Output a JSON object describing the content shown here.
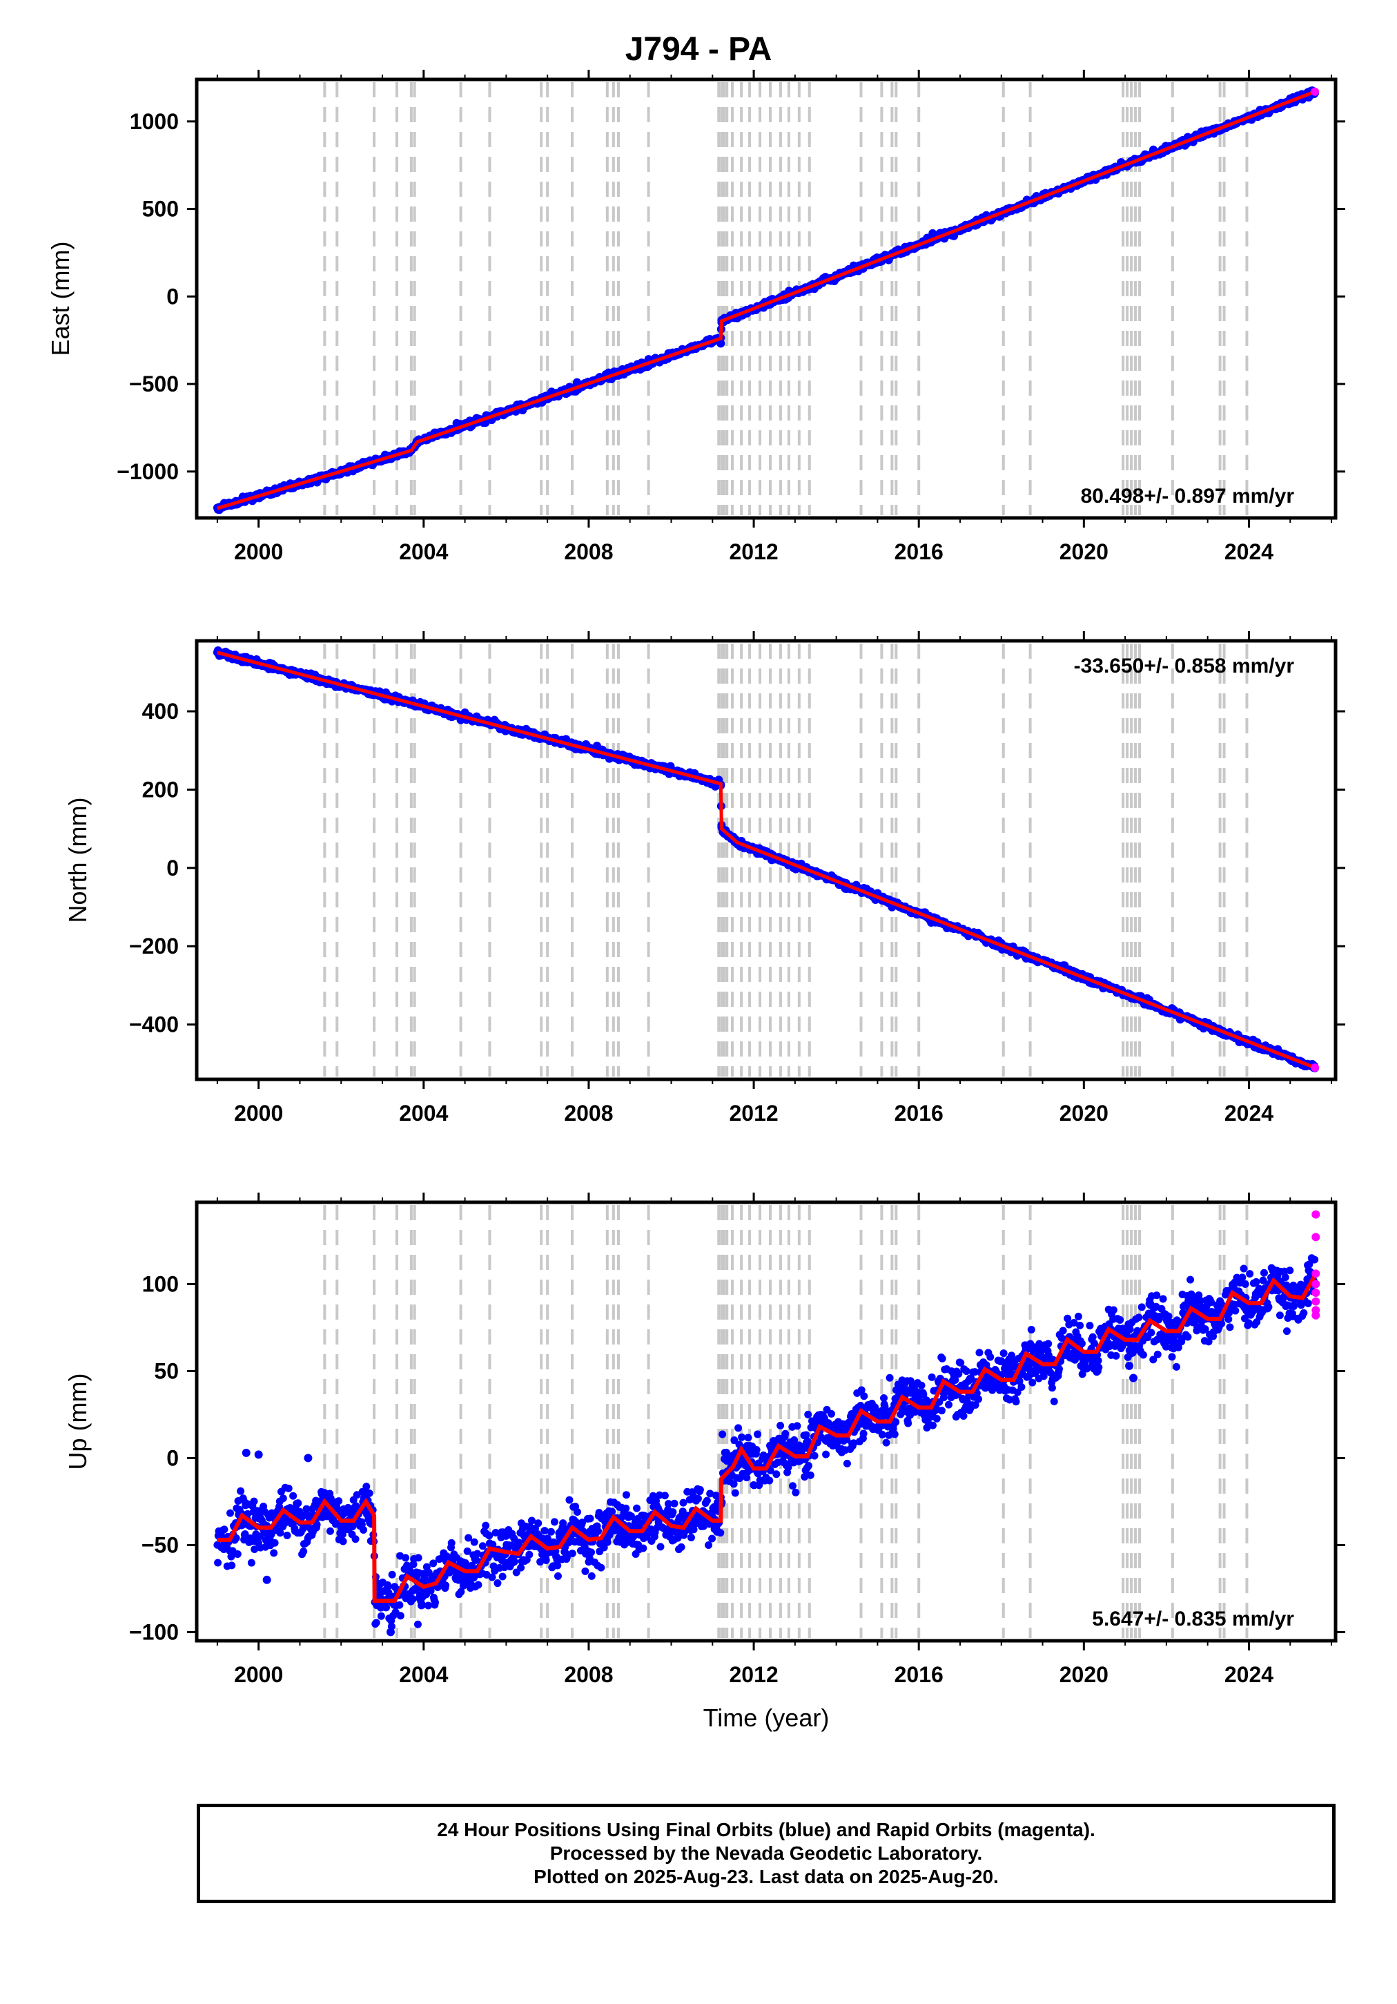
{
  "title": "J794 - PA",
  "footer": {
    "line1": "24 Hour Positions Using Final Orbits (blue) and Rapid Orbits (magenta).",
    "line2": "Processed by the Nevada Geodetic Laboratory.",
    "line3": "Plotted on 2025-Aug-23. Last data on 2025-Aug-20."
  },
  "colors": {
    "final_orbits": "#0000ff",
    "rapid_orbits": "#ff00ff",
    "model": "#ff0000",
    "event_lines": "#c8c8c8"
  },
  "event_years": [
    2001.6,
    2001.9,
    2002.8,
    2003.35,
    2003.7,
    2003.78,
    2004.9,
    2005.6,
    2006.85,
    2007.0,
    2007.6,
    2008.45,
    2008.6,
    2008.72,
    2009.45,
    2011.15,
    2011.22,
    2011.28,
    2011.35,
    2011.48,
    2011.7,
    2011.9,
    2012.15,
    2012.4,
    2012.65,
    2012.85,
    2013.1,
    2013.35,
    2014.6,
    2015.1,
    2015.35,
    2015.45,
    2016.0,
    2018.05,
    2018.7,
    2020.95,
    2021.05,
    2021.15,
    2021.25,
    2021.35,
    2022.15,
    2023.3,
    2023.4,
    2023.95
  ],
  "chart_data": [
    {
      "type": "scatter",
      "title": "J794 - PA",
      "xlabel": "",
      "ylabel": "East (mm)",
      "xlim": [
        1998.5,
        2026.1
      ],
      "ylim": [
        -1265,
        1240
      ],
      "xticks": [
        2000,
        2004,
        2008,
        2012,
        2016,
        2020,
        2024
      ],
      "yticks": [
        -1000,
        -500,
        0,
        500,
        1000
      ],
      "ytick_labels": [
        "−1000",
        "−500",
        "0",
        "500",
        "1000"
      ],
      "rate_text": "80.498+/- 0.897 mm/yr",
      "rate_position": "bottom-right",
      "segments": [
        {
          "x": [
            1999.0,
            2003.7
          ],
          "y": [
            -1210,
            -880
          ]
        },
        {
          "x": [
            2003.7,
            2003.85
          ],
          "y": [
            -880,
            -830
          ]
        },
        {
          "x": [
            2003.85,
            2011.2
          ],
          "y": [
            -830,
            -240
          ]
        },
        {
          "x": [
            2011.2,
            2011.22
          ],
          "y": [
            -240,
            -140
          ]
        },
        {
          "x": [
            2011.22,
            2025.6
          ],
          "y": [
            -140,
            1170
          ]
        }
      ],
      "rapid_points": [
        {
          "x": 2025.6,
          "y": 1170
        }
      ]
    },
    {
      "type": "scatter",
      "xlabel": "",
      "ylabel": "North (mm)",
      "xlim": [
        1998.5,
        2026.1
      ],
      "ylim": [
        -540,
        580
      ],
      "xticks": [
        2000,
        2004,
        2008,
        2012,
        2016,
        2020,
        2024
      ],
      "yticks": [
        -400,
        -200,
        0,
        200,
        400
      ],
      "ytick_labels": [
        "−400",
        "−200",
        "0",
        "200",
        "400"
      ],
      "rate_text": "-33.650+/- 0.858 mm/yr",
      "rate_position": "top-right",
      "segments": [
        {
          "x": [
            1999.0,
            2011.2
          ],
          "y": [
            550,
            215
          ]
        },
        {
          "x": [
            2011.2,
            2011.22
          ],
          "y": [
            215,
            100
          ]
        },
        {
          "x": [
            2011.22,
            2011.6
          ],
          "y": [
            100,
            65
          ]
        },
        {
          "x": [
            2011.6,
            2025.6
          ],
          "y": [
            65,
            -510
          ]
        }
      ],
      "rapid_points": [
        {
          "x": 2025.6,
          "y": -510
        }
      ]
    },
    {
      "type": "scatter",
      "xlabel": "Time (year)",
      "ylabel": "Up (mm)",
      "xlim": [
        1998.5,
        2026.1
      ],
      "ylim": [
        -105,
        147
      ],
      "xticks": [
        2000,
        2004,
        2008,
        2012,
        2016,
        2020,
        2024
      ],
      "yticks": [
        -100,
        -50,
        0,
        50,
        100
      ],
      "ytick_labels": [
        "−100",
        "−50",
        "0",
        "50",
        "100"
      ],
      "rate_text": "5.647+/- 0.835 mm/yr",
      "rate_position": "bottom-right",
      "model": [
        {
          "x": 1999.0,
          "y": -47
        },
        {
          "x": 1999.3,
          "y": -47
        },
        {
          "x": 1999.6,
          "y": -33
        },
        {
          "x": 2000.0,
          "y": -40
        },
        {
          "x": 2000.3,
          "y": -40
        },
        {
          "x": 2000.6,
          "y": -30
        },
        {
          "x": 2001.0,
          "y": -37
        },
        {
          "x": 2001.3,
          "y": -37
        },
        {
          "x": 2001.6,
          "y": -25
        },
        {
          "x": 2002.0,
          "y": -36
        },
        {
          "x": 2002.3,
          "y": -36
        },
        {
          "x": 2002.6,
          "y": -25
        },
        {
          "x": 2002.8,
          "y": -33
        },
        {
          "x": 2002.81,
          "y": -82
        },
        {
          "x": 2003.3,
          "y": -82
        },
        {
          "x": 2003.6,
          "y": -68
        },
        {
          "x": 2004.0,
          "y": -74
        },
        {
          "x": 2004.3,
          "y": -72
        },
        {
          "x": 2004.6,
          "y": -60
        },
        {
          "x": 2005.0,
          "y": -65
        },
        {
          "x": 2005.3,
          "y": -65
        },
        {
          "x": 2005.6,
          "y": -52
        },
        {
          "x": 2006.0,
          "y": -54
        },
        {
          "x": 2006.3,
          "y": -55
        },
        {
          "x": 2006.6,
          "y": -45
        },
        {
          "x": 2007.0,
          "y": -52
        },
        {
          "x": 2007.3,
          "y": -51
        },
        {
          "x": 2007.6,
          "y": -40
        },
        {
          "x": 2008.0,
          "y": -47
        },
        {
          "x": 2008.3,
          "y": -46
        },
        {
          "x": 2008.6,
          "y": -34
        },
        {
          "x": 2009.0,
          "y": -42
        },
        {
          "x": 2009.3,
          "y": -42
        },
        {
          "x": 2009.6,
          "y": -31
        },
        {
          "x": 2010.0,
          "y": -39
        },
        {
          "x": 2010.3,
          "y": -40
        },
        {
          "x": 2010.6,
          "y": -29
        },
        {
          "x": 2011.0,
          "y": -36
        },
        {
          "x": 2011.2,
          "y": -36
        },
        {
          "x": 2011.21,
          "y": -12
        },
        {
          "x": 2011.5,
          "y": -5
        },
        {
          "x": 2011.7,
          "y": 5
        },
        {
          "x": 2012.0,
          "y": -6
        },
        {
          "x": 2012.3,
          "y": -6
        },
        {
          "x": 2012.6,
          "y": 7
        },
        {
          "x": 2013.0,
          "y": 1
        },
        {
          "x": 2013.3,
          "y": 1
        },
        {
          "x": 2013.6,
          "y": 18
        },
        {
          "x": 2014.0,
          "y": 13
        },
        {
          "x": 2014.3,
          "y": 13
        },
        {
          "x": 2014.6,
          "y": 27
        },
        {
          "x": 2015.0,
          "y": 21
        },
        {
          "x": 2015.3,
          "y": 21
        },
        {
          "x": 2015.6,
          "y": 35
        },
        {
          "x": 2016.0,
          "y": 29
        },
        {
          "x": 2016.3,
          "y": 29
        },
        {
          "x": 2016.6,
          "y": 44
        },
        {
          "x": 2017.0,
          "y": 38
        },
        {
          "x": 2017.3,
          "y": 38
        },
        {
          "x": 2017.6,
          "y": 51
        },
        {
          "x": 2018.0,
          "y": 45
        },
        {
          "x": 2018.3,
          "y": 45
        },
        {
          "x": 2018.6,
          "y": 60
        },
        {
          "x": 2019.0,
          "y": 54
        },
        {
          "x": 2019.3,
          "y": 54
        },
        {
          "x": 2019.6,
          "y": 68
        },
        {
          "x": 2020.0,
          "y": 61
        },
        {
          "x": 2020.3,
          "y": 61
        },
        {
          "x": 2020.6,
          "y": 74
        },
        {
          "x": 2021.0,
          "y": 68
        },
        {
          "x": 2021.3,
          "y": 68
        },
        {
          "x": 2021.6,
          "y": 79
        },
        {
          "x": 2022.0,
          "y": 73
        },
        {
          "x": 2022.3,
          "y": 73
        },
        {
          "x": 2022.6,
          "y": 86
        },
        {
          "x": 2023.0,
          "y": 80
        },
        {
          "x": 2023.3,
          "y": 80
        },
        {
          "x": 2023.6,
          "y": 95
        },
        {
          "x": 2024.0,
          "y": 89
        },
        {
          "x": 2024.3,
          "y": 89
        },
        {
          "x": 2024.6,
          "y": 102
        },
        {
          "x": 2025.0,
          "y": 93
        },
        {
          "x": 2025.3,
          "y": 92
        },
        {
          "x": 2025.6,
          "y": 105
        }
      ],
      "scatter_std_mm": 7,
      "outliers": [
        {
          "x": 2021.2,
          "y": 46
        },
        {
          "x": 2021.1,
          "y": 53
        },
        {
          "x": 1999.7,
          "y": 3
        },
        {
          "x": 2000.0,
          "y": 2
        },
        {
          "x": 2001.2,
          "y": 0
        },
        {
          "x": 2003.2,
          "y": -100
        },
        {
          "x": 2000.2,
          "y": -70
        }
      ],
      "rapid_points": [
        {
          "x": 2025.62,
          "y": 140
        },
        {
          "x": 2025.62,
          "y": 127
        },
        {
          "x": 2025.62,
          "y": 106
        },
        {
          "x": 2025.62,
          "y": 100
        },
        {
          "x": 2025.62,
          "y": 95
        },
        {
          "x": 2025.62,
          "y": 90
        },
        {
          "x": 2025.62,
          "y": 85
        },
        {
          "x": 2025.62,
          "y": 82
        }
      ]
    }
  ]
}
